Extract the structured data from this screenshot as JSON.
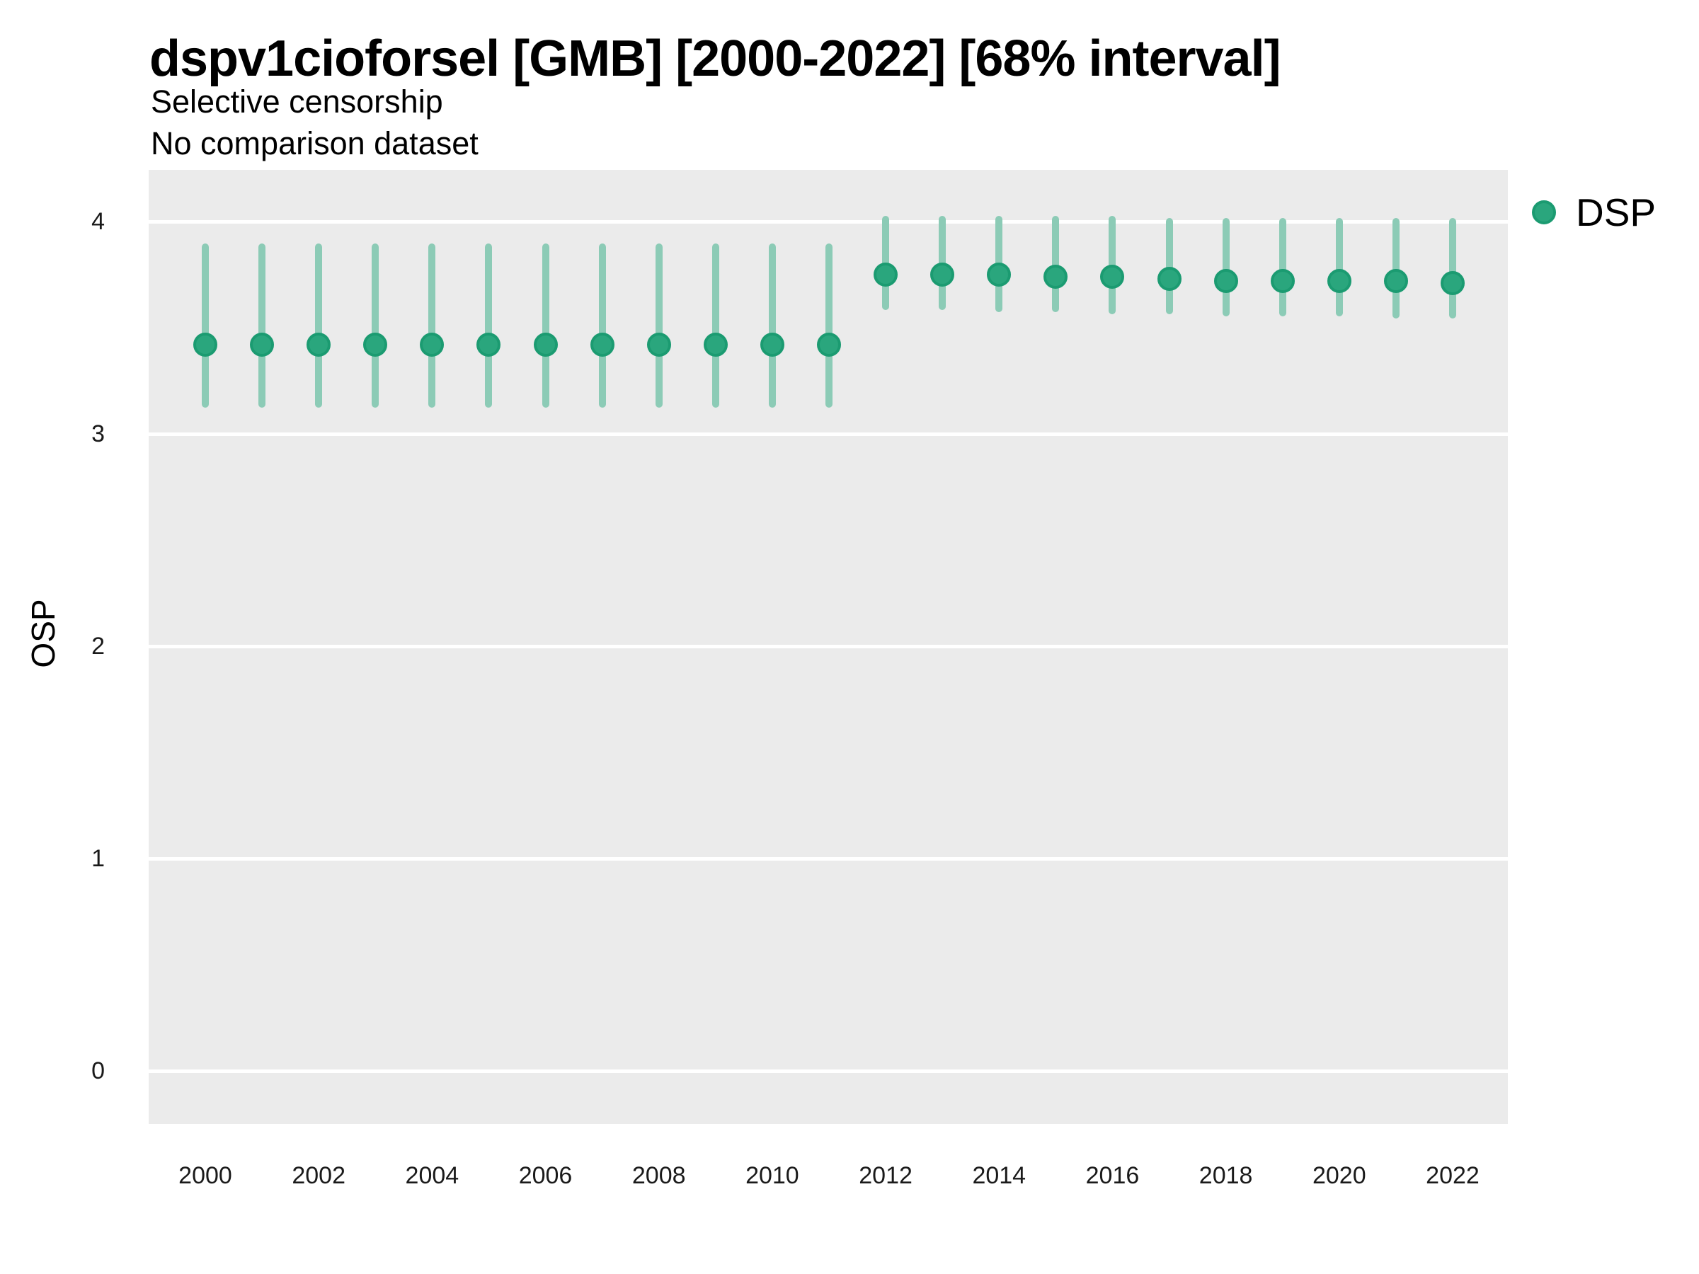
{
  "header": {
    "title": "dspv1cioforsel [GMB] [2000-2022] [68% interval]",
    "subtitle1": "Selective censorship",
    "subtitle2": "No comparison dataset"
  },
  "axes": {
    "y_title": "OSP",
    "y_ticks": [
      4,
      3,
      2,
      1,
      0
    ],
    "x_ticks": [
      2000,
      2002,
      2004,
      2006,
      2008,
      2010,
      2012,
      2014,
      2016,
      2018,
      2020,
      2022
    ]
  },
  "legend": {
    "label": "DSP",
    "marker": "circle-icon"
  },
  "colors": {
    "point_fill": "#2AA67D",
    "point_ring": "#1B9B71",
    "interval": "#8CCBB6",
    "panel_bg": "#EBEBEB",
    "gridline": "#FFFFFF",
    "text": "#000000",
    "tick_text": "#1a1a1a"
  },
  "chart_data": {
    "type": "pointrange",
    "interval": "68%",
    "title": "dspv1cioforsel [GMB] [2000-2022] [68% interval]",
    "subtitle": "Selective censorship / No comparison dataset",
    "xlabel": "",
    "ylabel": "OSP",
    "ylim": [
      -0.25,
      4.25
    ],
    "xlim": [
      1999,
      2023
    ],
    "grid": "major-horizontal-only",
    "legend_position": "right-top",
    "series": [
      {
        "name": "DSP",
        "color": "#2AA67D",
        "points": [
          {
            "year": 2000,
            "est": 3.42,
            "lo": 3.14,
            "hi": 3.88
          },
          {
            "year": 2001,
            "est": 3.42,
            "lo": 3.14,
            "hi": 3.88
          },
          {
            "year": 2002,
            "est": 3.42,
            "lo": 3.14,
            "hi": 3.88
          },
          {
            "year": 2003,
            "est": 3.42,
            "lo": 3.14,
            "hi": 3.88
          },
          {
            "year": 2004,
            "est": 3.42,
            "lo": 3.14,
            "hi": 3.88
          },
          {
            "year": 2005,
            "est": 3.42,
            "lo": 3.14,
            "hi": 3.88
          },
          {
            "year": 2006,
            "est": 3.42,
            "lo": 3.14,
            "hi": 3.88
          },
          {
            "year": 2007,
            "est": 3.42,
            "lo": 3.14,
            "hi": 3.88
          },
          {
            "year": 2008,
            "est": 3.42,
            "lo": 3.14,
            "hi": 3.88
          },
          {
            "year": 2009,
            "est": 3.42,
            "lo": 3.14,
            "hi": 3.88
          },
          {
            "year": 2010,
            "est": 3.42,
            "lo": 3.14,
            "hi": 3.88
          },
          {
            "year": 2011,
            "est": 3.42,
            "lo": 3.14,
            "hi": 3.88
          },
          {
            "year": 2012,
            "est": 3.75,
            "lo": 3.6,
            "hi": 4.01
          },
          {
            "year": 2013,
            "est": 3.75,
            "lo": 3.6,
            "hi": 4.01
          },
          {
            "year": 2014,
            "est": 3.75,
            "lo": 3.59,
            "hi": 4.01
          },
          {
            "year": 2015,
            "est": 3.74,
            "lo": 3.59,
            "hi": 4.01
          },
          {
            "year": 2016,
            "est": 3.74,
            "lo": 3.58,
            "hi": 4.01
          },
          {
            "year": 2017,
            "est": 3.73,
            "lo": 3.58,
            "hi": 4.0
          },
          {
            "year": 2018,
            "est": 3.72,
            "lo": 3.57,
            "hi": 4.0
          },
          {
            "year": 2019,
            "est": 3.72,
            "lo": 3.57,
            "hi": 4.0
          },
          {
            "year": 2020,
            "est": 3.72,
            "lo": 3.57,
            "hi": 4.0
          },
          {
            "year": 2021,
            "est": 3.72,
            "lo": 3.56,
            "hi": 4.0
          },
          {
            "year": 2022,
            "est": 3.71,
            "lo": 3.56,
            "hi": 4.0
          }
        ]
      }
    ]
  }
}
